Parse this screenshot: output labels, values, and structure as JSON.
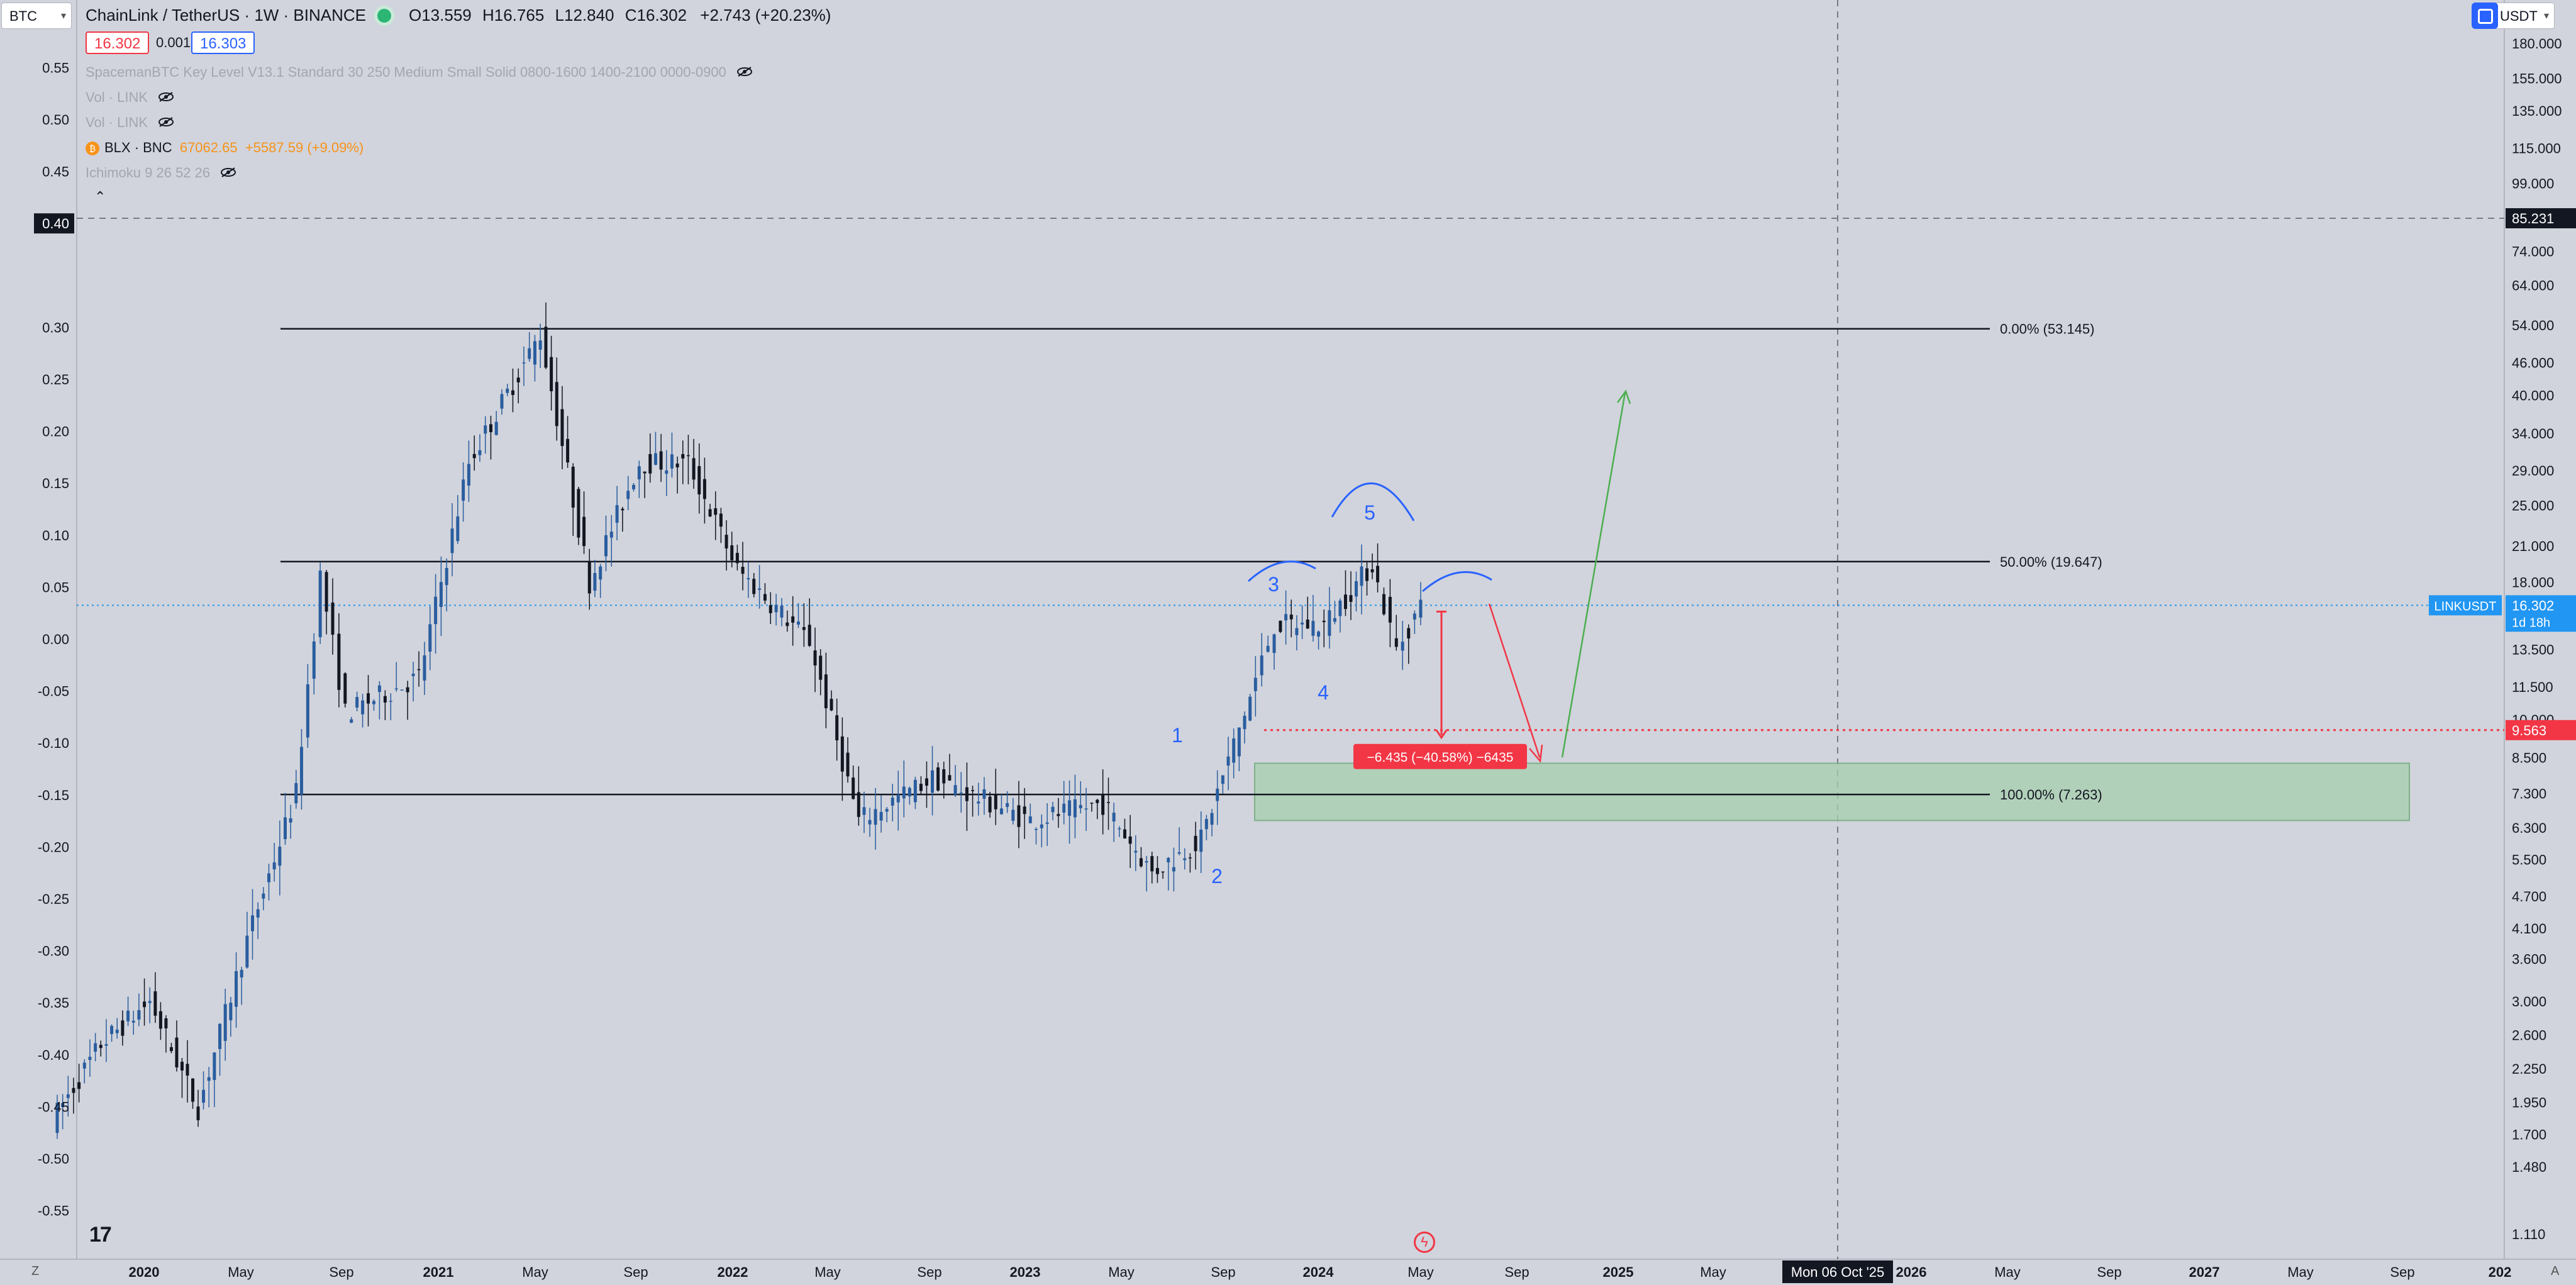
{
  "header": {
    "symbol_select": "BTC",
    "currency_select": "USDT",
    "title": "ChainLink / TetherUS · 1W · BINANCE",
    "open": "O13.559",
    "high": "H16.765",
    "low": "L12.840",
    "close": "C16.302",
    "change": "+2.743 (+20.23%)",
    "bid": "16.302",
    "spread": "0.001",
    "ask": "16.303"
  },
  "indicators": {
    "keylevel": "SpacemanBTC Key Level V13.1 Standard 30 250 Medium Small Solid 0800-1600 1400-2100 0000-0900",
    "vol1": "Vol · LINK",
    "vol2": "Vol · LINK",
    "blx_label": "BLX · BNC",
    "blx_value": "67062.65",
    "blx_change": "+5587.59 (+9.09%)",
    "ichimoku": "Ichimoku 9 26 52 26"
  },
  "colors": {
    "background": "#d1d4dc",
    "up_candle": "#2a5d9f",
    "down_candle": "#131722",
    "last_price": "#2196f3",
    "target": "#f23645",
    "green_zone": "#a6cfae",
    "green_arrow": "#4caf50",
    "blue_annotation": "#2962ff"
  },
  "chart_data": {
    "type": "candlestick",
    "symbol": "LINKUSDT",
    "interval": "1W",
    "scale": "log",
    "x_ticks": [
      "2020",
      "May",
      "Sep",
      "2021",
      "May",
      "Sep",
      "2022",
      "May",
      "Sep",
      "2023",
      "May",
      "Sep",
      "2024",
      "May",
      "Sep",
      "2025",
      "May",
      "2026",
      "May",
      "Sep",
      "2027",
      "May",
      "Sep",
      "202"
    ],
    "y_right_ticks": [
      "180.000",
      "155.000",
      "135.000",
      "115.000",
      "99.000",
      "85.231",
      "74.000",
      "64.000",
      "54.000",
      "46.000",
      "40.000",
      "34.000",
      "29.000",
      "25.000",
      "21.000",
      "18.000",
      "13.500",
      "11.500",
      "10.000",
      "8.500",
      "7.300",
      "6.300",
      "5.500",
      "4.700",
      "4.100",
      "3.600",
      "3.000",
      "2.600",
      "2.250",
      "1.950",
      "1.700",
      "1.480",
      "1.110"
    ],
    "y_left_ticks": [
      "0.55",
      "0.50",
      "0.45",
      "0.40",
      "0.30",
      "0.25",
      "0.20",
      "0.15",
      "0.10",
      "0.05",
      "0.00",
      "-0.05",
      "-0.10",
      "-0.15",
      "-0.20",
      "-0.25",
      "-0.30",
      "-0.35",
      "-0.40",
      "-0.45",
      "-0.50",
      "-0.55"
    ],
    "left_highlight": "0.40",
    "right_highlight": "85.231",
    "last_price": 16.302,
    "last_price_label": "16.302",
    "last_price_countdown": "1d 18h",
    "series_label": "LINKUSDT",
    "target_price": 9.563,
    "target_label": "9.563",
    "measure_label": "−6.435 (−40.58%) −6435",
    "crosshair_date": "Mon 06 Oct '25",
    "fib_levels": [
      {
        "label": "0.00% (53.145)",
        "value": 53.145
      },
      {
        "label": "50.00% (19.647)",
        "value": 19.647
      },
      {
        "label": "100.00% (7.263)",
        "value": 7.263
      }
    ],
    "demand_zone": [
      6.5,
      8.3
    ],
    "wave_labels": [
      "1",
      "2",
      "3",
      "4",
      "5"
    ],
    "weekly_close_path": [
      {
        "date": "2019-09",
        "close": 1.8
      },
      {
        "date": "2019-11",
        "close": 2.5
      },
      {
        "date": "2020-01",
        "close": 3.0
      },
      {
        "date": "2020-03",
        "close": 1.9
      },
      {
        "date": "2020-05",
        "close": 3.9
      },
      {
        "date": "2020-07",
        "close": 7.3
      },
      {
        "date": "2020-08",
        "close": 18.5
      },
      {
        "date": "2020-09",
        "close": 10.3
      },
      {
        "date": "2020-12",
        "close": 12.0
      },
      {
        "date": "2021-02",
        "close": 30.0
      },
      {
        "date": "2021-05",
        "close": 52.0
      },
      {
        "date": "2021-07",
        "close": 18.0
      },
      {
        "date": "2021-09",
        "close": 30.0
      },
      {
        "date": "2021-11",
        "close": 30.0
      },
      {
        "date": "2022-01",
        "close": 19.0
      },
      {
        "date": "2022-04",
        "close": 14.0
      },
      {
        "date": "2022-06",
        "close": 6.5
      },
      {
        "date": "2022-09",
        "close": 7.8
      },
      {
        "date": "2023-01",
        "close": 6.5
      },
      {
        "date": "2023-04",
        "close": 7.0
      },
      {
        "date": "2023-06",
        "close": 5.2
      },
      {
        "date": "2023-08",
        "close": 6.0
      },
      {
        "date": "2023-10",
        "close": 11.0
      },
      {
        "date": "2023-11",
        "close": 15.0
      },
      {
        "date": "2024-01",
        "close": 15.0
      },
      {
        "date": "2024-03",
        "close": 19.5
      },
      {
        "date": "2024-04",
        "close": 13.5
      },
      {
        "date": "2024-05",
        "close": 16.3
      }
    ]
  }
}
